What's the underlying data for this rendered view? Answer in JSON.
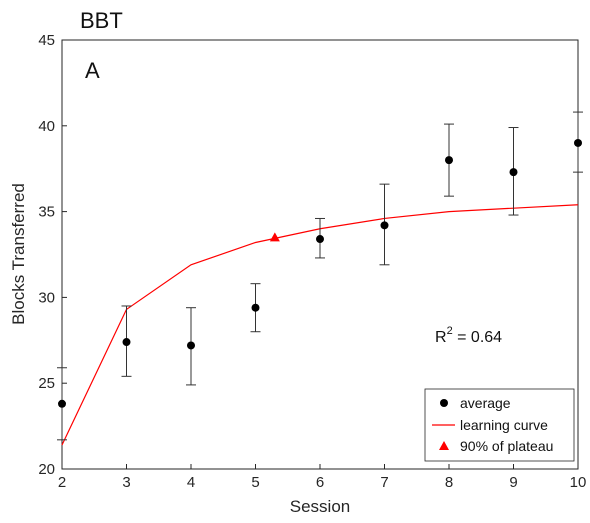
{
  "chart_data": {
    "type": "scatter",
    "title": "BBT",
    "panel_label": "A",
    "xlabel": "Session",
    "ylabel": "Blocks Transferred",
    "xlim": [
      2,
      10
    ],
    "ylim": [
      20,
      45
    ],
    "xticks": [
      2,
      3,
      4,
      5,
      6,
      7,
      8,
      9,
      10
    ],
    "yticks": [
      20,
      25,
      30,
      35,
      40,
      45
    ],
    "grid": false,
    "legend_position": "bottom-right",
    "annotation": {
      "prefix": "R",
      "sup": "2",
      "suffix": " = 0.64"
    },
    "series": [
      {
        "name": "average",
        "kind": "points_with_errorbars",
        "color": "#000000",
        "x": [
          2,
          3,
          4,
          5,
          6,
          7,
          8,
          9,
          10
        ],
        "y": [
          23.8,
          27.4,
          27.2,
          29.4,
          33.4,
          34.2,
          38.0,
          37.3,
          39.0
        ],
        "err_low": [
          21.7,
          25.4,
          24.9,
          28.0,
          32.3,
          31.9,
          35.9,
          34.8,
          37.3
        ],
        "err_high": [
          25.9,
          29.5,
          29.4,
          30.8,
          34.6,
          36.6,
          40.1,
          39.9,
          40.8
        ]
      },
      {
        "name": "learning curve",
        "kind": "line",
        "color": "#ff0000",
        "x": [
          2,
          3,
          4,
          5,
          6,
          7,
          8,
          9,
          10
        ],
        "y": [
          21.4,
          29.3,
          31.9,
          33.2,
          34.0,
          34.6,
          35.0,
          35.2,
          35.4
        ]
      },
      {
        "name": "90% of plateau",
        "kind": "marker",
        "color": "#ff0000",
        "x": [
          5.3
        ],
        "y": [
          33.5
        ]
      }
    ]
  }
}
